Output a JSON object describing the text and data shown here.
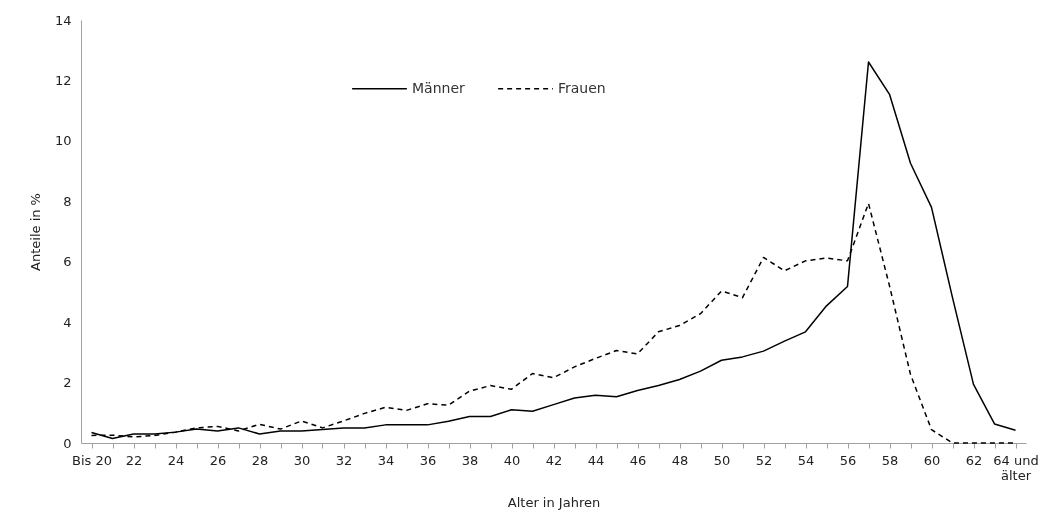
{
  "chart_data": {
    "type": "line",
    "xlabel": "Alter in Jahren",
    "ylabel": "Anteile in %",
    "categories": [
      "Bis 20",
      null,
      "22",
      null,
      "24",
      null,
      "26",
      null,
      "28",
      null,
      "30",
      null,
      "32",
      null,
      "34",
      null,
      "36",
      null,
      "38",
      null,
      "40",
      null,
      "42",
      null,
      "44",
      null,
      "46",
      null,
      "48",
      null,
      "50",
      null,
      "52",
      null,
      "54",
      null,
      "56",
      null,
      "58",
      null,
      "60",
      null,
      "62",
      null,
      "64 und älter"
    ],
    "series": [
      {
        "name": "Männer",
        "color": "#000000",
        "line_style": "solid",
        "values": [
          0.35,
          0.15,
          0.3,
          0.3,
          0.36,
          0.46,
          0.4,
          0.5,
          0.3,
          0.4,
          0.4,
          0.45,
          0.5,
          0.5,
          0.6,
          0.6,
          0.6,
          0.72,
          0.88,
          0.88,
          1.1,
          1.05,
          1.27,
          1.49,
          1.58,
          1.53,
          1.74,
          1.9,
          2.1,
          2.38,
          2.74,
          2.85,
          3.04,
          3.37,
          3.68,
          4.54,
          5.18,
          12.61,
          11.54,
          9.26,
          7.8,
          4.81,
          1.94,
          0.63,
          0.42
        ]
      },
      {
        "name": "Frauen",
        "color": "#000000",
        "line_style": "dashed",
        "values": [
          0.25,
          0.26,
          0.2,
          0.25,
          0.36,
          0.5,
          0.55,
          0.4,
          0.62,
          0.46,
          0.73,
          0.5,
          0.73,
          0.98,
          1.18,
          1.08,
          1.3,
          1.25,
          1.72,
          1.9,
          1.78,
          2.3,
          2.16,
          2.52,
          2.8,
          3.06,
          2.95,
          3.68,
          3.89,
          4.28,
          5.03,
          4.81,
          6.14,
          5.7,
          6.03,
          6.12,
          6.03,
          7.93,
          5.2,
          2.27,
          0.44,
          0,
          0,
          0,
          0
        ]
      }
    ],
    "ylim": [
      0,
      14
    ],
    "yticks": [
      0,
      2,
      4,
      6,
      8,
      10,
      12,
      14
    ],
    "grid": false,
    "legend": "top"
  }
}
